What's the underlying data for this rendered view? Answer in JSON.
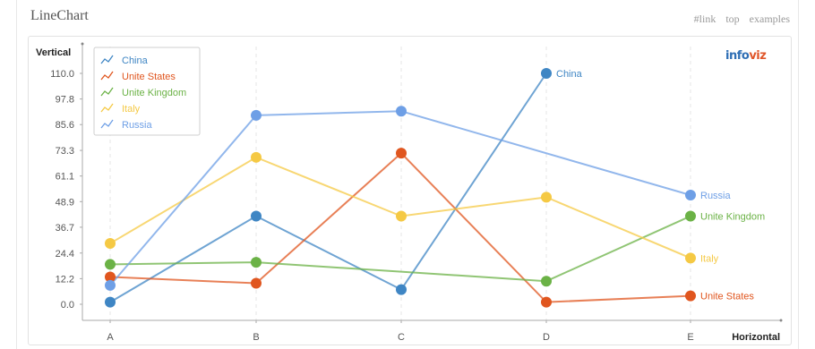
{
  "page": {
    "title": "LineChart",
    "links": [
      "#link",
      "top",
      "examples"
    ]
  },
  "logo": {
    "part1": "info",
    "part2": "viz"
  },
  "chart_data": {
    "type": "line",
    "xlabel": "Horizontal",
    "ylabel": "Vertical",
    "categories": [
      "A",
      "B",
      "C",
      "D",
      "E"
    ],
    "y_ticks": [
      "0.0",
      "12.2",
      "24.4",
      "36.7",
      "48.9",
      "61.1",
      "73.3",
      "85.6",
      "97.8",
      "110.0"
    ],
    "ylim": [
      0,
      110
    ],
    "grid": "vertical dashed lines at categories",
    "legend_position": "top-left",
    "series": [
      {
        "name": "China",
        "color": "#3f86c4",
        "values": [
          1,
          42,
          7,
          110,
          null
        ]
      },
      {
        "name": "Unite States",
        "color": "#e0561f",
        "values": [
          13,
          10,
          72,
          1,
          4
        ]
      },
      {
        "name": "Unite Kingdom",
        "color": "#6bb246",
        "values": [
          19,
          20,
          null,
          11,
          42
        ]
      },
      {
        "name": "Italy",
        "color": "#f5c944",
        "values": [
          29,
          70,
          42,
          51,
          22
        ]
      },
      {
        "name": "Russia",
        "color": "#6e9fe6",
        "values": [
          9,
          90,
          92,
          null,
          52
        ]
      }
    ]
  }
}
